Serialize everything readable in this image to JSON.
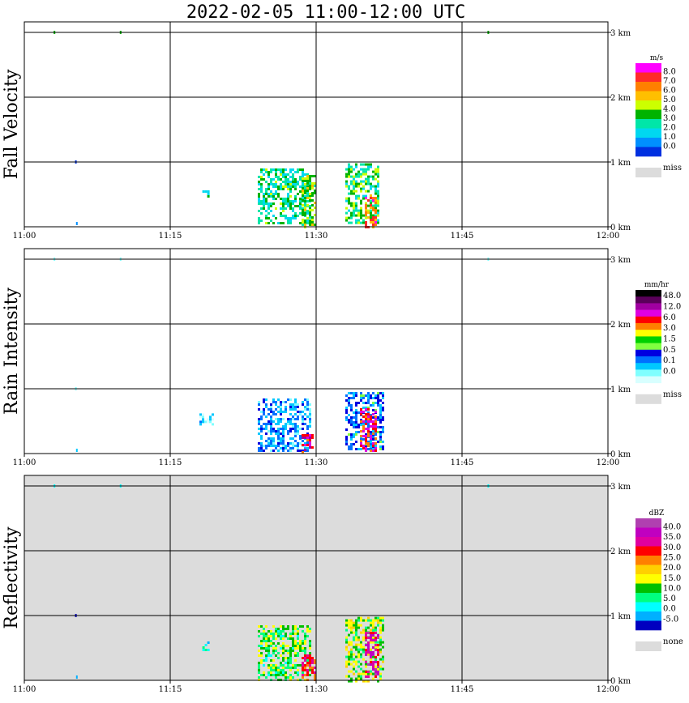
{
  "chart_data": {
    "title": "2022-02-05   11:00-12:00 UTC",
    "x_ticks": [
      "11:00",
      "11:15",
      "11:30",
      "11:45",
      "12:00"
    ],
    "y_ticks": [
      "0 km",
      "1 km",
      "2 km",
      "3 km"
    ],
    "xlim_minutes": [
      0,
      60
    ],
    "ylim_km": [
      0,
      3.0
    ],
    "grid": true,
    "panels": [
      {
        "type": "heatmap",
        "name": "fall-velocity",
        "ylabel": "Fall Velocity",
        "unit": "m/s",
        "background": "#ffffff",
        "legend": {
          "colors": [
            "#ff00ff",
            "#ff2a2a",
            "#ff7f00",
            "#ffbf00",
            "#ccff00",
            "#00b300",
            "#00e6a8",
            "#00d8f0",
            "#0090ff",
            "#0030e0"
          ],
          "labels": [
            "8.0",
            "7.0",
            "6.0",
            "5.0",
            "4.0",
            "3.0",
            "2.0",
            "1.0",
            "0.0"
          ],
          "missing_label": "miss"
        },
        "echoes": [
          {
            "t0": 18.3,
            "t1": 19.0,
            "h0": 0.45,
            "h1": 0.6,
            "intensity": 0.3
          },
          {
            "t0": 24.0,
            "t1": 29.5,
            "h0": 0.05,
            "h1": 0.9,
            "intensity": 0.35
          },
          {
            "t0": 28.5,
            "t1": 30.0,
            "h0": 0.0,
            "h1": 0.8,
            "intensity": 0.5
          },
          {
            "t0": 33.0,
            "t1": 36.5,
            "h0": 0.05,
            "h1": 0.98,
            "intensity": 0.4
          },
          {
            "t0": 35.0,
            "t1": 36.2,
            "h0": 0.0,
            "h1": 0.5,
            "intensity": 0.8
          }
        ],
        "dots": [
          {
            "t": 5.3,
            "h": 1.0,
            "c": "#0030e0"
          },
          {
            "t": 5.4,
            "h": 0.05,
            "c": "#0090ff"
          },
          {
            "t": 3.1,
            "h": 3.0,
            "c": "#00b300"
          },
          {
            "t": 9.9,
            "h": 3.0,
            "c": "#00b300"
          },
          {
            "t": 47.7,
            "h": 3.0,
            "c": "#00b300"
          }
        ]
      },
      {
        "type": "heatmap",
        "name": "rain-intensity",
        "ylabel": "Rain Intensity",
        "unit": "mm/hr",
        "background": "#ffffff",
        "legend": {
          "colors": [
            "#000000",
            "#5a005a",
            "#a000a0",
            "#e000e0",
            "#ff0000",
            "#ff7f00",
            "#ffff00",
            "#00d000",
            "#80ff40",
            "#0000e0",
            "#0070ff",
            "#00c8ff",
            "#80ffff",
            "#d8ffff"
          ],
          "labels": [
            "48.0",
            "12.0",
            "6.0",
            "3.0",
            "1.5",
            "0.5",
            "0.1",
            "0.0"
          ],
          "missing_label": "miss"
        },
        "echoes": [
          {
            "t0": 18.0,
            "t1": 19.5,
            "h0": 0.45,
            "h1": 0.62,
            "intensity": 0.1
          },
          {
            "t0": 24.0,
            "t1": 29.5,
            "h0": 0.05,
            "h1": 0.85,
            "intensity": 0.2
          },
          {
            "t0": 28.5,
            "t1": 29.7,
            "h0": 0.0,
            "h1": 0.3,
            "intensity": 0.75
          },
          {
            "t0": 33.0,
            "t1": 37.0,
            "h0": 0.05,
            "h1": 0.95,
            "intensity": 0.25
          },
          {
            "t0": 34.5,
            "t1": 36.0,
            "h0": 0.05,
            "h1": 0.7,
            "intensity": 0.7
          }
        ],
        "dots": [
          {
            "t": 5.3,
            "h": 1.0,
            "c": "#80ffff"
          },
          {
            "t": 5.4,
            "h": 0.05,
            "c": "#00c8ff"
          },
          {
            "t": 3.1,
            "h": 3.0,
            "c": "#80ffff"
          },
          {
            "t": 9.9,
            "h": 3.0,
            "c": "#80ffff"
          },
          {
            "t": 47.7,
            "h": 3.0,
            "c": "#80ffff"
          }
        ]
      },
      {
        "type": "heatmap",
        "name": "reflectivity",
        "ylabel": "Reflectivity",
        "unit": "dBZ",
        "background": "#dcdcdc",
        "legend": {
          "colors": [
            "#b040b0",
            "#c000c0",
            "#e000a0",
            "#ff0000",
            "#ff8000",
            "#ffd000",
            "#ffff00",
            "#00c000",
            "#00ff80",
            "#00ffff",
            "#00b0ff",
            "#0000c0"
          ],
          "labels": [
            "40.0",
            "35.0",
            "30.0",
            "25.0",
            "20.0",
            "15.0",
            "10.0",
            "5.0",
            "0.0",
            "-5.0"
          ],
          "missing_label": "none"
        },
        "echoes": [
          {
            "t0": 18.3,
            "t1": 19.0,
            "h0": 0.45,
            "h1": 0.6,
            "intensity": 0.2
          },
          {
            "t0": 24.0,
            "t1": 29.5,
            "h0": 0.0,
            "h1": 0.85,
            "intensity": 0.35
          },
          {
            "t0": 28.5,
            "t1": 29.8,
            "h0": 0.0,
            "h1": 0.4,
            "intensity": 0.75
          },
          {
            "t0": 33.0,
            "t1": 37.0,
            "h0": 0.0,
            "h1": 0.98,
            "intensity": 0.4
          },
          {
            "t0": 35.0,
            "t1": 36.3,
            "h0": 0.05,
            "h1": 0.75,
            "intensity": 0.85
          }
        ],
        "dots": [
          {
            "t": 5.3,
            "h": 1.0,
            "c": "#0000c0"
          },
          {
            "t": 5.4,
            "h": 0.05,
            "c": "#00b0ff"
          },
          {
            "t": 3.1,
            "h": 3.0,
            "c": "#00ffff"
          },
          {
            "t": 9.9,
            "h": 3.0,
            "c": "#00ffff"
          },
          {
            "t": 47.7,
            "h": 3.0,
            "c": "#00ffff"
          }
        ]
      }
    ]
  }
}
